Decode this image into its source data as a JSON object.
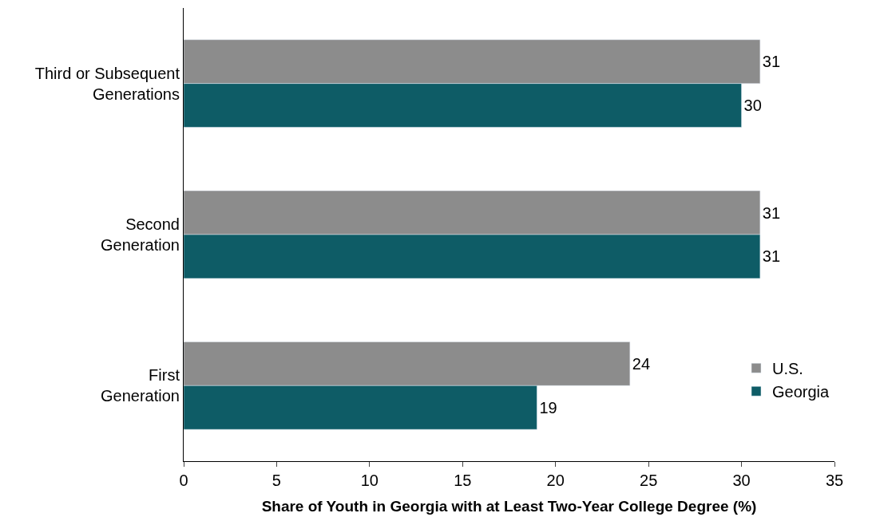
{
  "chart_data": {
    "type": "bar",
    "orientation": "horizontal",
    "xlabel": "Share of Youth in Georgia with at Least Two-Year College Degree (%)",
    "categories": [
      "Third or Subsequent\nGenerations",
      "Second\nGeneration",
      "First\nGeneration"
    ],
    "series": [
      {
        "name": "U.S.",
        "color": "#8c8c8c",
        "values": [
          31,
          31,
          24
        ]
      },
      {
        "name": "Georgia",
        "color": "#0e5c66",
        "values": [
          30,
          31,
          19
        ]
      }
    ],
    "xlim": [
      0,
      35
    ],
    "xticks": [
      0,
      5,
      10,
      15,
      20,
      25,
      30,
      35
    ],
    "legend": "bottom right",
    "data_labels": true
  }
}
